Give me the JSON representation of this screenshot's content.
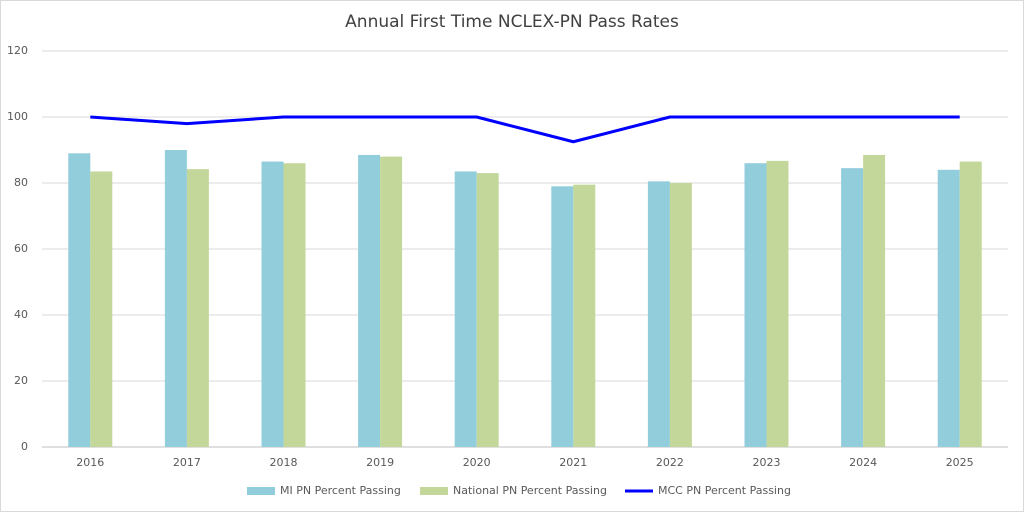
{
  "chart_data": {
    "type": "bar-line",
    "title": "Annual First Time NCLEX-PN Pass Rates",
    "categories": [
      "2016",
      "2017",
      "2018",
      "2019",
      "2020",
      "2021",
      "2022",
      "2023",
      "2024",
      "2025"
    ],
    "series": [
      {
        "name": "MI PN Percent Passing",
        "type": "bar",
        "color": "#92cddc",
        "values": [
          89,
          90,
          86.5,
          88.5,
          83.5,
          79,
          80.5,
          86,
          84.5,
          84
        ]
      },
      {
        "name": "National PN Percent Passing",
        "type": "bar",
        "color": "#c4d79b",
        "values": [
          83.5,
          84.2,
          86,
          88,
          83,
          79.5,
          80,
          86.7,
          88.5,
          86.5
        ]
      },
      {
        "name": "MCC PN Percent Passing",
        "type": "line",
        "color": "#0000ff",
        "values": [
          100,
          98,
          100,
          100,
          100,
          92.5,
          100,
          100,
          100,
          100
        ]
      }
    ],
    "ylim": [
      0,
      120
    ],
    "yticks": [
      0,
      20,
      40,
      60,
      80,
      100,
      120
    ],
    "grid": true,
    "legend": "bottom"
  }
}
